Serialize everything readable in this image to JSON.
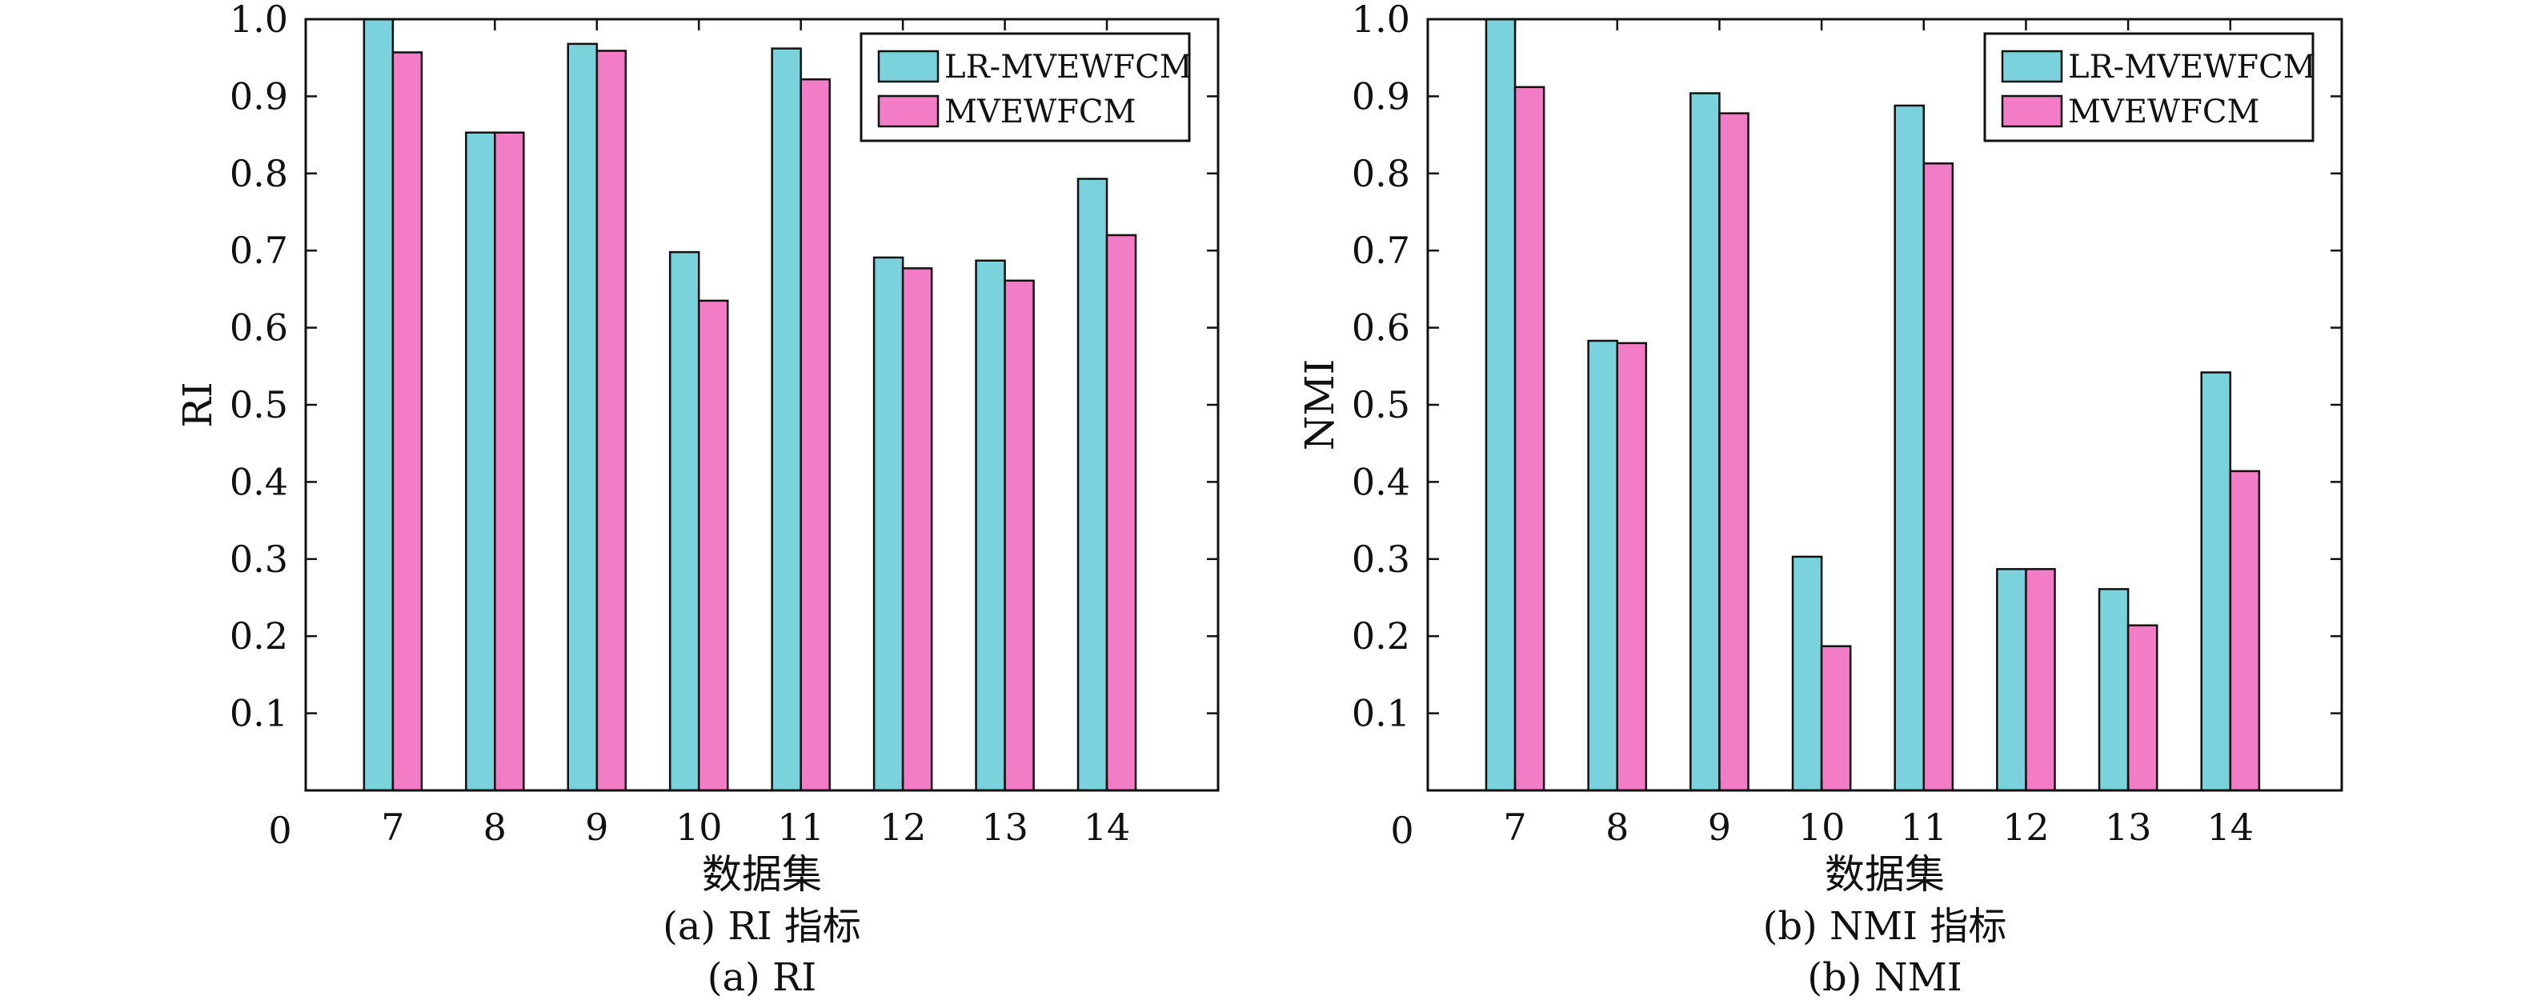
{
  "colors": {
    "series_a": "#7ad3dc",
    "series_b": "#f27cc5",
    "axis": "#111111"
  },
  "chart_data": [
    {
      "type": "bar",
      "categories": [
        "7",
        "8",
        "9",
        "10",
        "11",
        "12",
        "13",
        "14"
      ],
      "series": [
        {
          "name": "LR-MVEWFCM",
          "values": [
            1.0,
            0.853,
            0.968,
            0.698,
            0.962,
            0.691,
            0.687,
            0.793
          ]
        },
        {
          "name": "MVEWFCM",
          "values": [
            0.957,
            0.853,
            0.959,
            0.635,
            0.922,
            0.677,
            0.661,
            0.72
          ]
        }
      ],
      "xlabel": "数据集",
      "ylabel": "RI",
      "ylim": [
        0,
        1
      ],
      "yticks": [
        "0.1",
        "0.2",
        "0.3",
        "0.4",
        "0.5",
        "0.6",
        "0.7",
        "0.8",
        "0.9",
        "1.0"
      ],
      "yzero_label": "0",
      "caption_line1": "(a) RI 指标",
      "caption_line2": "(a) RI",
      "legend_position": "top-right"
    },
    {
      "type": "bar",
      "categories": [
        "7",
        "8",
        "9",
        "10",
        "11",
        "12",
        "13",
        "14"
      ],
      "series": [
        {
          "name": "LR-MVEWFCM",
          "values": [
            1.0,
            0.583,
            0.904,
            0.303,
            0.888,
            0.287,
            0.261,
            0.542
          ]
        },
        {
          "name": "MVEWFCM",
          "values": [
            0.912,
            0.58,
            0.878,
            0.187,
            0.813,
            0.287,
            0.214,
            0.414
          ]
        }
      ],
      "xlabel": "数据集",
      "ylabel": "NMI",
      "ylim": [
        0,
        1
      ],
      "yticks": [
        "0.1",
        "0.2",
        "0.3",
        "0.4",
        "0.5",
        "0.6",
        "0.7",
        "0.8",
        "0.9",
        "1.0"
      ],
      "yzero_label": "0",
      "caption_line1": "(b) NMI 指标",
      "caption_line2": "(b) NMI",
      "legend_position": "top-right"
    }
  ]
}
